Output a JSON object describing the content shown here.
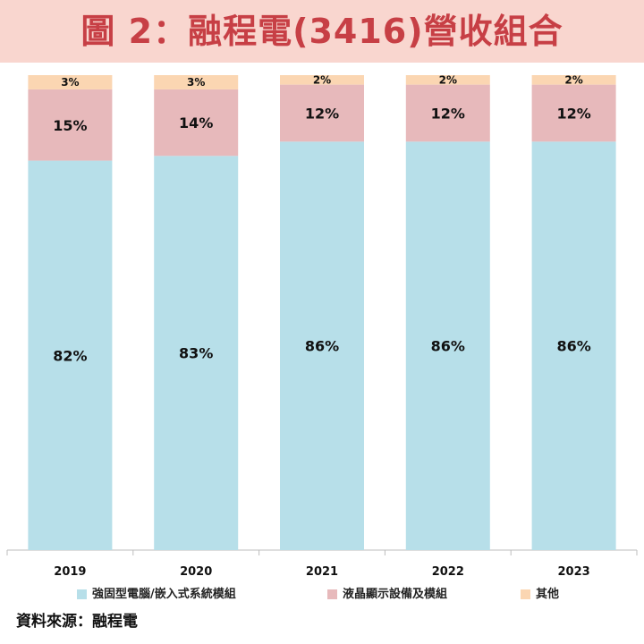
{
  "title": "圖 2：融程電(3416)營收組合",
  "source": "資料來源：融程電",
  "colors": {
    "background": "#ffffff",
    "title_bg": "#f9d6cf",
    "title_text": "#c73f45",
    "series_embedded": "#b7dfe9",
    "series_lcd": "#e7b9bb",
    "series_other": "#fbd6b2",
    "axis": "#bdbdbd"
  },
  "chart_data": {
    "type": "bar",
    "stacked": true,
    "categories": [
      "2019",
      "2020",
      "2021",
      "2022",
      "2023"
    ],
    "ylim": [
      0,
      100
    ],
    "grid": false,
    "legend_position": "bottom",
    "series": [
      {
        "name": "強固型電腦/嵌入式系統模組",
        "values": [
          82,
          83,
          86,
          86,
          86
        ],
        "labels": [
          "82%",
          "83%",
          "86%",
          "86%",
          "86%"
        ]
      },
      {
        "name": "液晶顯示設備及模組",
        "values": [
          15,
          14,
          12,
          12,
          12
        ],
        "labels": [
          "15%",
          "14%",
          "12%",
          "12%",
          "12%"
        ]
      },
      {
        "name": "其他",
        "values": [
          3,
          3,
          2,
          2,
          2
        ],
        "labels": [
          "3%",
          "3%",
          "2%",
          "2%",
          "2%"
        ]
      }
    ]
  }
}
